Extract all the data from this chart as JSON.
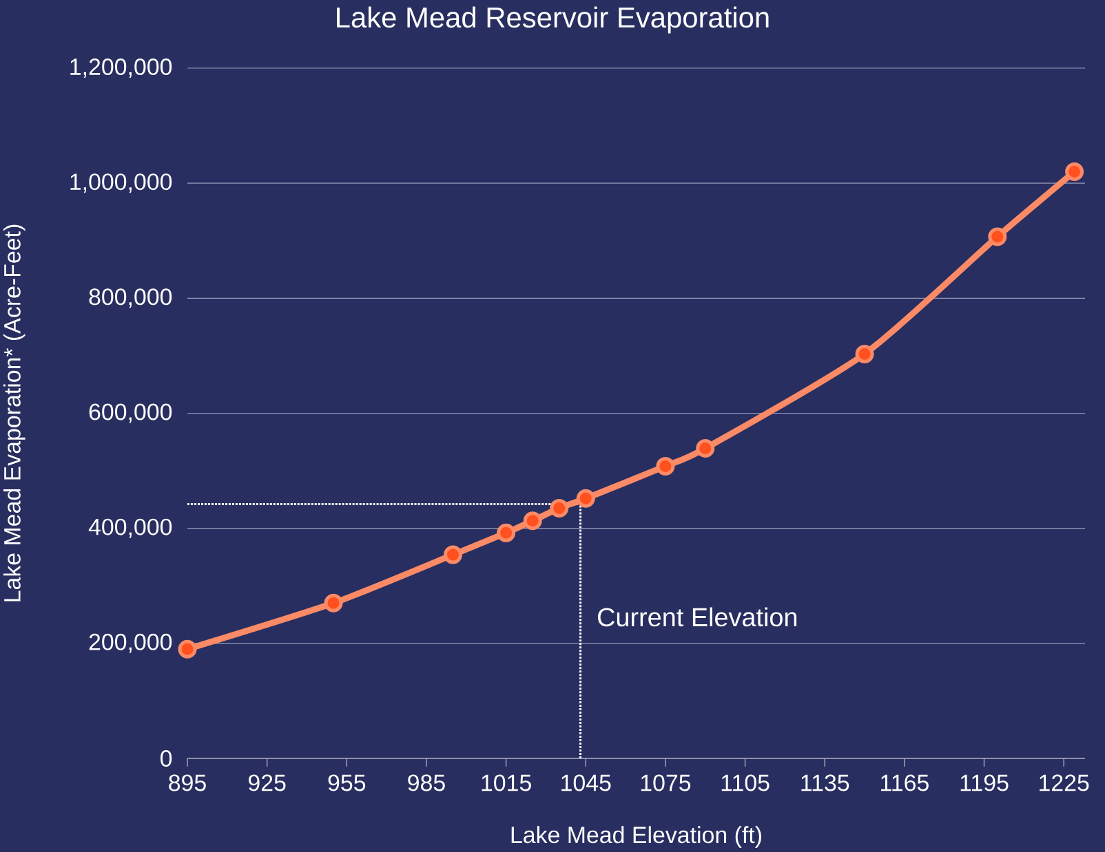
{
  "chart_data": {
    "type": "line",
    "title": "Lake Mead Reservoir Evaporation",
    "xlabel": "Lake Mead Elevation (ft)",
    "ylabel": "Lake Mead Evaporation* (Acre-Feet)",
    "x": [
      895,
      950,
      995,
      1015,
      1025,
      1035,
      1045,
      1075,
      1090,
      1150,
      1200,
      1229
    ],
    "series": [
      {
        "color": "#fb8a66",
        "values": [
          190000,
          270000,
          354000,
          392000,
          413000,
          435000,
          452000,
          508000,
          539000,
          703000,
          907000,
          1020000
        ]
      }
    ],
    "xlim": [
      895,
      1233
    ],
    "xticks": [
      895,
      925,
      955,
      985,
      1015,
      1045,
      1075,
      1105,
      1135,
      1165,
      1195,
      1225
    ],
    "ylim": [
      0,
      1200000
    ],
    "yticks": [
      {
        "value": 0,
        "label": "0"
      },
      {
        "value": 200000,
        "label": "200,000"
      },
      {
        "value": 400000,
        "label": "400,000"
      },
      {
        "value": 600000,
        "label": "600,000"
      },
      {
        "value": 800000,
        "label": "800,000"
      },
      {
        "value": 1000000,
        "label": "1,000,000"
      },
      {
        "value": 1200000,
        "label": "1,200,000"
      }
    ],
    "grid": "y",
    "marker": "circle",
    "line_style": "solid",
    "ref_lines": [
      {
        "axis": "x",
        "value": 1043,
        "label": "Current Elevation",
        "color": "#ffffff",
        "line_style": "dotted"
      },
      {
        "axis": "y",
        "value": 442000,
        "color": "#ffffff",
        "line_style": "dotted"
      }
    ]
  }
}
